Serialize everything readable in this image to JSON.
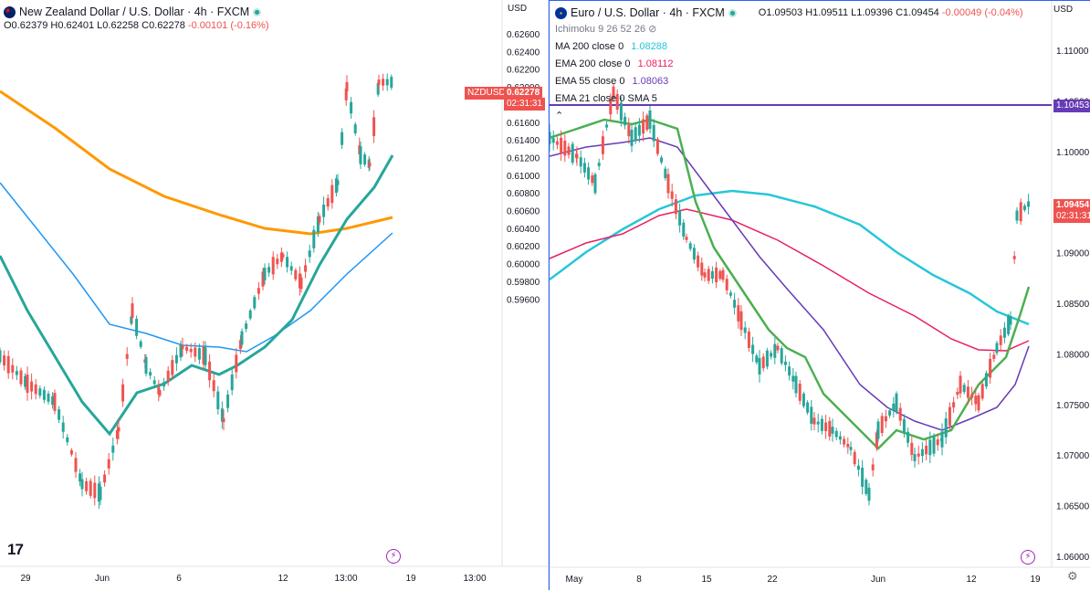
{
  "left": {
    "title": "New Zealand Dollar / U.S. Dollar · 4h · FXCM",
    "ohlc": {
      "o": "O0.62379",
      "h": "H0.62401",
      "l": "L0.62258",
      "c": "C0.62278",
      "chg": "-0.00101 (-0.16%)"
    },
    "currency": "USD",
    "price_axis": [
      "0.62600",
      "0.62400",
      "0.62200",
      "0.62000",
      "0.61800",
      "0.61600",
      "0.61400",
      "0.61200",
      "0.61000",
      "0.60800",
      "0.60600",
      "0.60400",
      "0.60200",
      "0.60000",
      "0.59800",
      "0.59600"
    ],
    "time_axis": [
      "29",
      "Jun",
      "6",
      "12",
      "13:00",
      "19",
      "13:00"
    ],
    "symbol_tag": "NZDUSD",
    "last_price": "0.62278",
    "countdown": "02:31:31",
    "logo": "17"
  },
  "right": {
    "title": "Euro / U.S. Dollar · 4h · FXCM",
    "ohlc": {
      "o": "O1.09503",
      "h": "H1.09511",
      "l": "L1.09396",
      "c": "C1.09454",
      "chg": "-0.00049 (-0.04%)"
    },
    "currency": "USD",
    "indicators": [
      {
        "label": "Ichimoku 9 26 52 26",
        "value": ""
      },
      {
        "label": "MA 200 close 0",
        "value": "1.08288",
        "color": "#26c6da"
      },
      {
        "label": "EMA 200 close 0",
        "value": "1.08112",
        "color": "#e91e63"
      },
      {
        "label": "EMA 55 close 0",
        "value": "1.08063",
        "color": "#673ab7"
      },
      {
        "label": "EMA 21 close 0 SMA 5",
        "value": "",
        "color": "#4caf50"
      }
    ],
    "price_axis": [
      "1.11000",
      "1.10500",
      "1.10000",
      "1.09500",
      "1.09000",
      "1.08500",
      "1.08000",
      "1.07500",
      "1.07000",
      "1.06500",
      "1.06000"
    ],
    "time_axis": [
      "May",
      "8",
      "15",
      "22",
      "Jun",
      "12",
      "19"
    ],
    "level_tag": "1.10453",
    "last_price": "1.09454",
    "countdown": "02:31:31"
  },
  "colors": {
    "up": "#26a69a",
    "down": "#ef5350",
    "ema_teal": "#26a69a",
    "ema_orange": "#ff9800",
    "ema_blue": "#2196f3",
    "level": "#673ab7"
  }
}
